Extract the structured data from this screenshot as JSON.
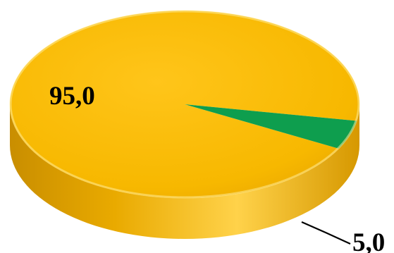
{
  "chart_data": {
    "type": "pie",
    "title": "",
    "categories": [
      "",
      ""
    ],
    "values": [
      95.0,
      5.0
    ],
    "data_labels": [
      "95,0",
      "5,0"
    ],
    "colors": [
      "#F2B400",
      "#0E9E4E"
    ],
    "style": "3d",
    "legend": "none"
  }
}
